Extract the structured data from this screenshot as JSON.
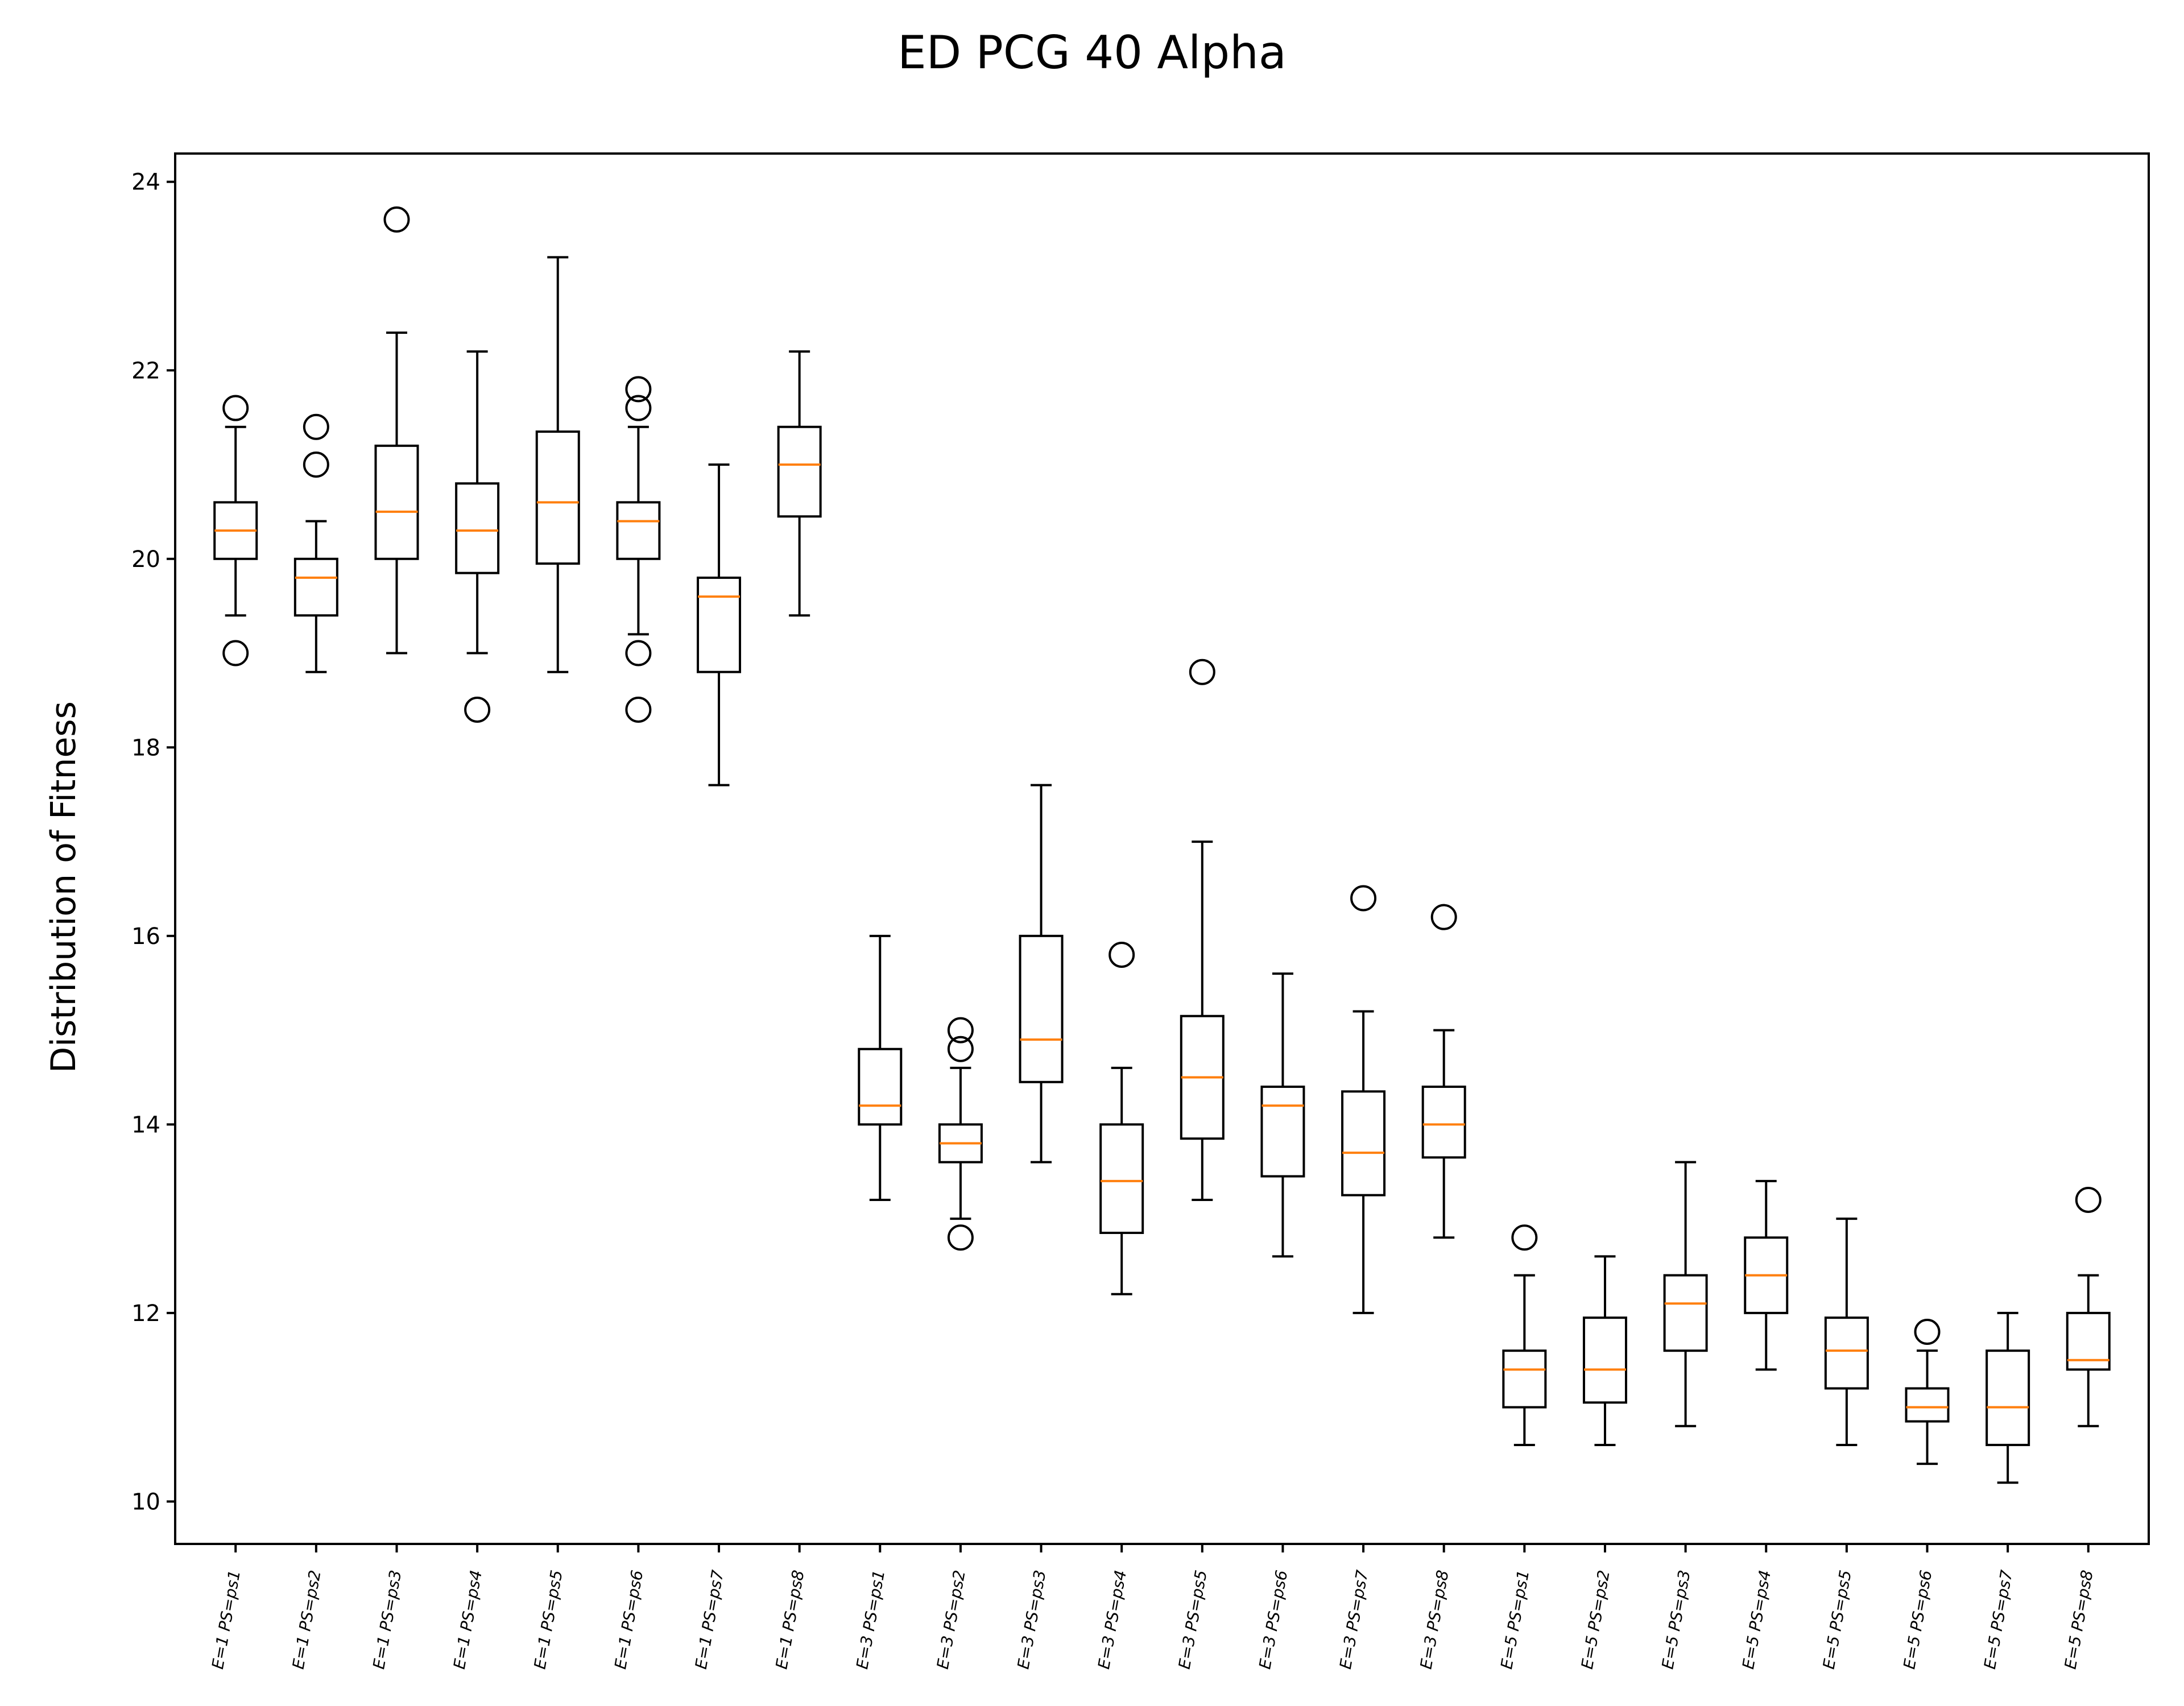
{
  "chart_data": {
    "type": "boxplot",
    "title": "ED PCG 40 Alpha",
    "xlabel": "",
    "ylabel": "Distribution of Fitness",
    "ylim": [
      9.55,
      24.3
    ],
    "yticks": [
      10,
      12,
      14,
      16,
      18,
      20,
      22,
      24
    ],
    "grid": false,
    "categories": [
      "E=1 PS=ps1",
      "E=1 PS=ps2",
      "E=1 PS=ps3",
      "E=1 PS=ps4",
      "E=1 PS=ps5",
      "E=1 PS=ps6",
      "E=1 PS=ps7",
      "E=1 PS=ps8",
      "E=3 PS=ps1",
      "E=3 PS=ps2",
      "E=3 PS=ps3",
      "E=3 PS=ps4",
      "E=3 PS=ps5",
      "E=3 PS=ps6",
      "E=3 PS=ps7",
      "E=3 PS=ps8",
      "E=5 PS=ps1",
      "E=5 PS=ps2",
      "E=5 PS=ps3",
      "E=5 PS=ps4",
      "E=5 PS=ps5",
      "E=5 PS=ps6",
      "E=5 PS=ps7",
      "E=5 PS=ps8"
    ],
    "boxes": [
      {
        "whislo": 19.4,
        "q1": 20.0,
        "med": 20.3,
        "q3": 20.6,
        "whishi": 21.4,
        "fliers": [
          21.6,
          19.0
        ]
      },
      {
        "whislo": 18.8,
        "q1": 19.4,
        "med": 19.8,
        "q3": 20.0,
        "whishi": 20.4,
        "fliers": [
          21.4,
          21.0
        ]
      },
      {
        "whislo": 19.0,
        "q1": 20.0,
        "med": 20.5,
        "q3": 21.2,
        "whishi": 22.4,
        "fliers": [
          23.6
        ]
      },
      {
        "whislo": 19.0,
        "q1": 19.85,
        "med": 20.3,
        "q3": 20.8,
        "whishi": 22.2,
        "fliers": [
          18.4
        ]
      },
      {
        "whislo": 18.8,
        "q1": 19.95,
        "med": 20.6,
        "q3": 21.35,
        "whishi": 23.2,
        "fliers": []
      },
      {
        "whislo": 19.2,
        "q1": 20.0,
        "med": 20.4,
        "q3": 20.6,
        "whishi": 21.4,
        "fliers": [
          21.8,
          21.6,
          19.0,
          18.4
        ]
      },
      {
        "whislo": 17.6,
        "q1": 18.8,
        "med": 19.6,
        "q3": 19.8,
        "whishi": 21.0,
        "fliers": []
      },
      {
        "whislo": 19.4,
        "q1": 20.45,
        "med": 21.0,
        "q3": 21.4,
        "whishi": 22.2,
        "fliers": []
      },
      {
        "whislo": 13.2,
        "q1": 14.0,
        "med": 14.2,
        "q3": 14.8,
        "whishi": 16.0,
        "fliers": []
      },
      {
        "whislo": 13.0,
        "q1": 13.6,
        "med": 13.8,
        "q3": 14.0,
        "whishi": 14.6,
        "fliers": [
          15.0,
          14.8,
          12.8
        ]
      },
      {
        "whislo": 13.6,
        "q1": 14.45,
        "med": 14.9,
        "q3": 16.0,
        "whishi": 17.6,
        "fliers": []
      },
      {
        "whislo": 12.2,
        "q1": 12.85,
        "med": 13.4,
        "q3": 14.0,
        "whishi": 14.6,
        "fliers": [
          15.8
        ]
      },
      {
        "whislo": 13.2,
        "q1": 13.85,
        "med": 14.5,
        "q3": 15.15,
        "whishi": 17.0,
        "fliers": [
          18.8
        ]
      },
      {
        "whislo": 12.6,
        "q1": 13.45,
        "med": 14.2,
        "q3": 14.4,
        "whishi": 15.6,
        "fliers": []
      },
      {
        "whislo": 12.0,
        "q1": 13.25,
        "med": 13.7,
        "q3": 14.35,
        "whishi": 15.2,
        "fliers": [
          16.4
        ]
      },
      {
        "whislo": 12.8,
        "q1": 13.65,
        "med": 14.0,
        "q3": 14.4,
        "whishi": 15.0,
        "fliers": [
          16.2
        ]
      },
      {
        "whislo": 10.6,
        "q1": 11.0,
        "med": 11.4,
        "q3": 11.6,
        "whishi": 12.4,
        "fliers": [
          12.8
        ]
      },
      {
        "whislo": 10.6,
        "q1": 11.05,
        "med": 11.4,
        "q3": 11.95,
        "whishi": 12.6,
        "fliers": []
      },
      {
        "whislo": 10.8,
        "q1": 11.6,
        "med": 12.1,
        "q3": 12.4,
        "whishi": 13.6,
        "fliers": []
      },
      {
        "whislo": 11.4,
        "q1": 12.0,
        "med": 12.4,
        "q3": 12.8,
        "whishi": 13.4,
        "fliers": []
      },
      {
        "whislo": 10.6,
        "q1": 11.2,
        "med": 11.6,
        "q3": 11.95,
        "whishi": 13.0,
        "fliers": []
      },
      {
        "whislo": 10.4,
        "q1": 10.85,
        "med": 11.0,
        "q3": 11.2,
        "whishi": 11.6,
        "fliers": [
          11.8
        ]
      },
      {
        "whislo": 10.2,
        "q1": 10.6,
        "med": 11.0,
        "q3": 11.6,
        "whishi": 12.0,
        "fliers": []
      },
      {
        "whislo": 10.8,
        "q1": 11.4,
        "med": 11.5,
        "q3": 12.0,
        "whishi": 12.4,
        "fliers": [
          13.2
        ]
      }
    ],
    "colors": {
      "box": "#000000",
      "median": "#ff7f0e",
      "flier": "#000000"
    }
  }
}
